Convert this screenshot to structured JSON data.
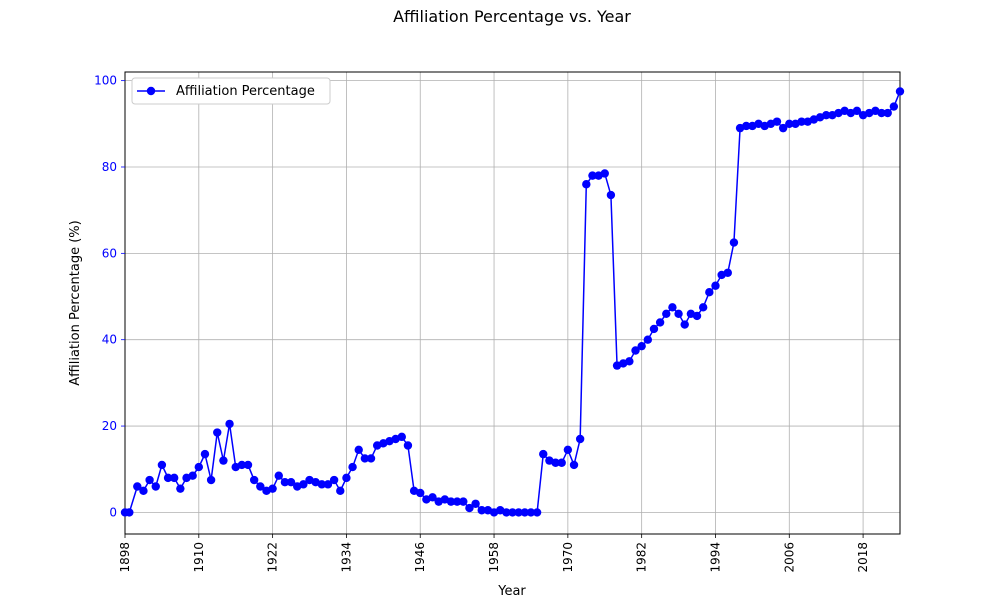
{
  "chart_data": {
    "type": "line",
    "title": "Affiliation Percentage vs. Year",
    "xlabel": "Year",
    "ylabel": "Affiliation Percentage (%)",
    "xlim": [
      1898,
      2024
    ],
    "ylim": [
      -5,
      102
    ],
    "xticks": [
      1898,
      1910,
      1922,
      1934,
      1946,
      1958,
      1970,
      1982,
      1994,
      2006,
      2018
    ],
    "yticks": [
      0,
      20,
      40,
      60,
      80,
      100
    ],
    "grid": true,
    "legend_position": "upper-left",
    "series": [
      {
        "name": "Affiliation Percentage",
        "color": "#0000ff",
        "marker": "circle",
        "x": [
          1898,
          1898.7,
          1900,
          1901,
          1902,
          1903,
          1904,
          1905,
          1906,
          1907,
          1908,
          1909,
          1910,
          1911,
          1912,
          1913,
          1914,
          1915,
          1916,
          1917,
          1918,
          1919,
          1920,
          1921,
          1922,
          1923,
          1924,
          1925,
          1926,
          1927,
          1928,
          1929,
          1930,
          1931,
          1932,
          1933,
          1934,
          1935,
          1936,
          1937,
          1938,
          1939,
          1940,
          1941,
          1942,
          1943,
          1944,
          1945,
          1946,
          1947,
          1948,
          1949,
          1950,
          1951,
          1952,
          1953,
          1954,
          1955,
          1956,
          1957,
          1958,
          1959,
          1960,
          1961,
          1962,
          1963,
          1964,
          1965,
          1966,
          1967,
          1968,
          1969,
          1970,
          1971,
          1972,
          1973,
          1974,
          1975,
          1976,
          1977,
          1978,
          1979,
          1980,
          1981,
          1982,
          1983,
          1984,
          1985,
          1986,
          1987,
          1988,
          1989,
          1990,
          1991,
          1992,
          1993,
          1994,
          1995,
          1996,
          1997,
          1998,
          1999,
          2000,
          2001,
          2002,
          2003,
          2004,
          2005,
          2006,
          2007,
          2008,
          2009,
          2010,
          2011,
          2012,
          2013,
          2014,
          2015,
          2016,
          2017,
          2018,
          2019,
          2020,
          2021,
          2022,
          2023,
          2024
        ],
        "y": [
          0,
          0,
          6,
          5,
          7.5,
          6,
          11,
          8,
          8,
          5.5,
          8,
          8.5,
          10.5,
          13.5,
          7.5,
          18.5,
          12,
          20.5,
          10.5,
          11,
          11,
          7.5,
          6,
          5,
          5.5,
          8.5,
          7,
          7,
          6,
          6.5,
          7.5,
          7,
          6.5,
          6.5,
          7.5,
          5,
          8,
          10.5,
          14.5,
          12.5,
          12.5,
          15.5,
          16,
          16.5,
          17,
          17.5,
          15.5,
          5,
          4.5,
          3,
          3.5,
          2.5,
          3,
          2.5,
          2.5,
          2.5,
          1,
          2,
          0.5,
          0.5,
          0,
          0.5,
          0,
          0,
          0,
          0,
          0,
          0,
          13.5,
          12,
          11.5,
          11.5,
          14.5,
          11,
          17,
          76,
          78,
          78,
          78.5,
          73.5,
          34,
          34.5,
          35,
          37.5,
          38.5,
          40,
          42.5,
          44,
          46,
          47.5,
          46,
          43.5,
          46,
          45.5,
          47.5,
          51,
          52.5,
          55,
          55.5,
          62.5,
          89,
          89.5,
          89.5,
          90,
          89.5,
          90,
          90.5,
          89,
          90,
          90,
          90.5,
          90.5,
          91,
          91.5,
          92,
          92,
          92.5,
          93,
          92.5,
          93,
          92,
          92.5,
          93,
          92.5,
          92.5,
          94,
          97.5
        ]
      }
    ]
  }
}
